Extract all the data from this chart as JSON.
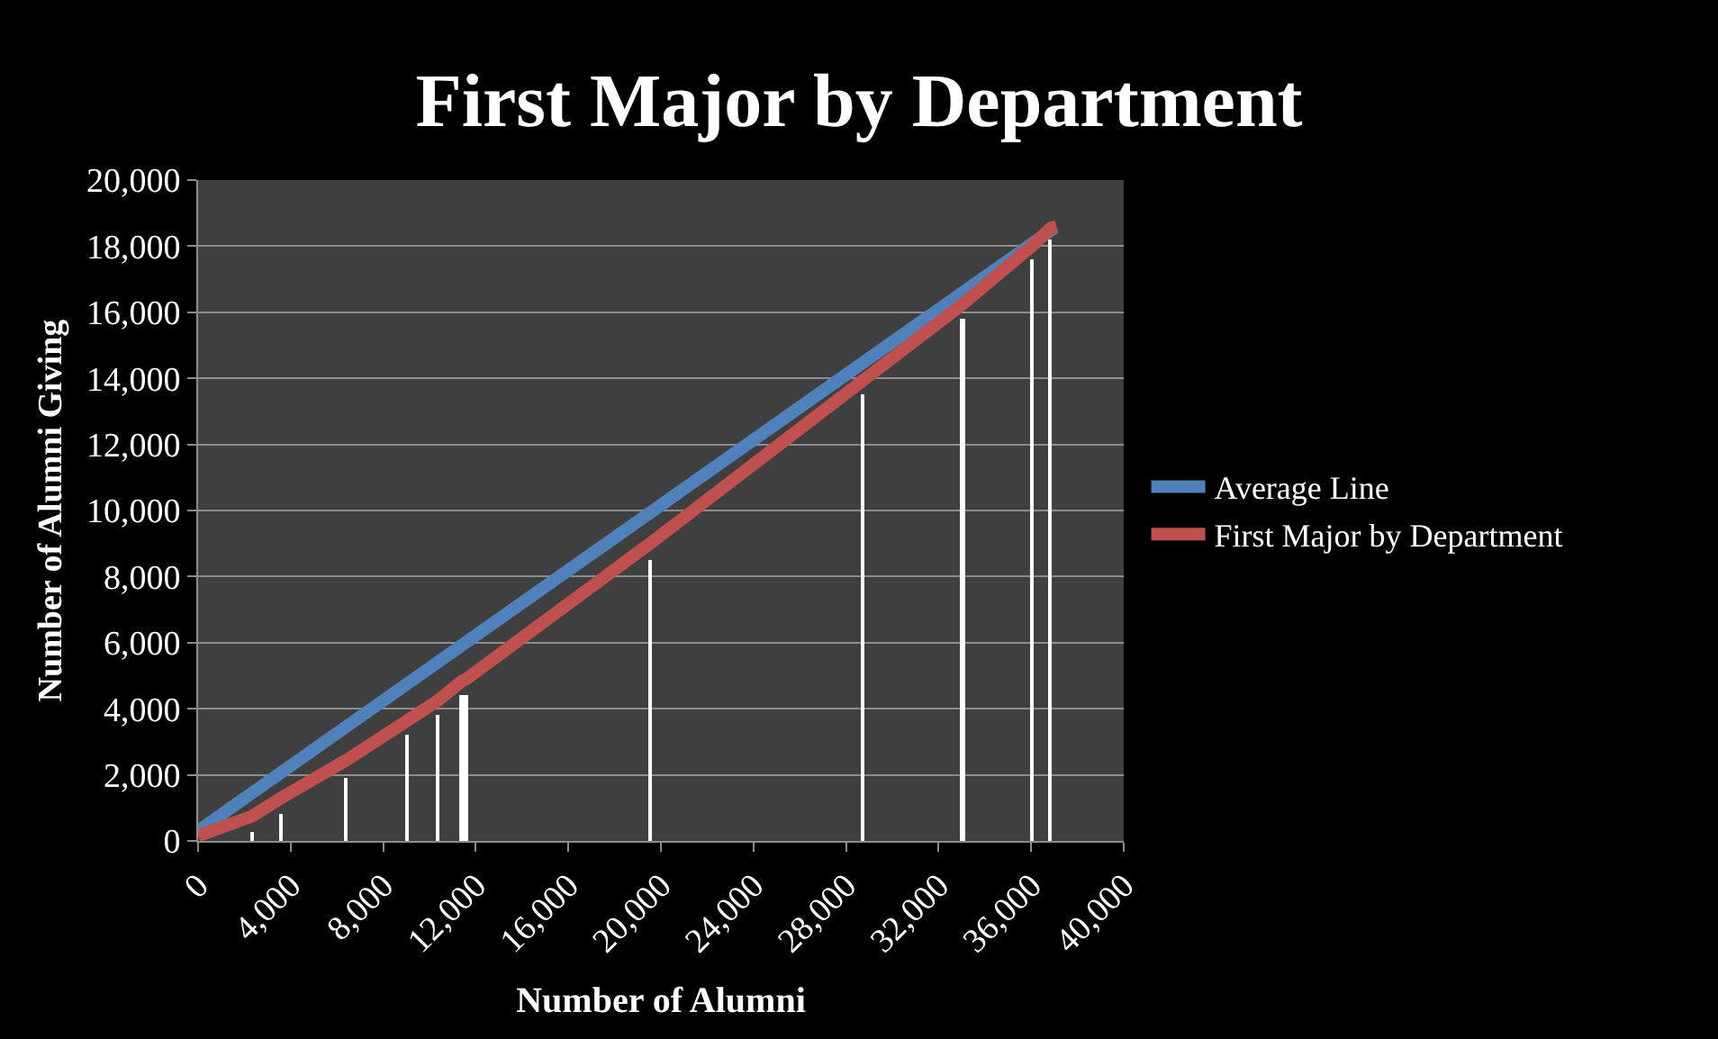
{
  "chart_data": {
    "type": "line",
    "title": "First Major by Department",
    "xlabel": "Number of Alumni",
    "ylabel": "Number of Alumni Giving",
    "series": [
      {
        "type": "bar",
        "color": "#ffffff",
        "x": [
          2336,
          3591,
          6423,
          9051,
          10365,
          11416,
          11591,
          19533,
          28759,
          33051,
          36029,
          36847
        ],
        "values": [
          300,
          800,
          1900,
          3200,
          3800,
          4400,
          4400,
          8500,
          13500,
          15800,
          17600,
          18200
        ]
      },
      {
        "name": "Average Line",
        "color": "#4f81bd",
        "x": [
          0,
          37000
        ],
        "values": [
          300,
          18550
        ]
      },
      {
        "name": "First Major by Department",
        "color": "#c0504d",
        "x": [
          0,
          2336,
          3591,
          6423,
          9051,
          10365,
          11416,
          11591,
          19533,
          28759,
          33051,
          36029,
          36847,
          37100
        ],
        "values": [
          150,
          750,
          1300,
          2450,
          3650,
          4250,
          4850,
          4900,
          9000,
          13950,
          16250,
          18000,
          18550,
          18600
        ]
      }
    ],
    "xlim": [
      0,
      40000
    ],
    "xticks": [
      {
        "value": 0,
        "label": "0"
      },
      {
        "value": 4000,
        "label": "4,000"
      },
      {
        "value": 8000,
        "label": "8,000"
      },
      {
        "value": 12000,
        "label": "12,000"
      },
      {
        "value": 16000,
        "label": "16,000"
      },
      {
        "value": 20000,
        "label": "20,000"
      },
      {
        "value": 24000,
        "label": "24,000"
      },
      {
        "value": 28000,
        "label": "28,000"
      },
      {
        "value": 32000,
        "label": "32,000"
      },
      {
        "value": 36000,
        "label": "36,000"
      },
      {
        "value": 40000,
        "label": "40,000"
      }
    ],
    "ylim": [
      0,
      20000
    ],
    "yticks": [
      {
        "value": 0,
        "label": "0"
      },
      {
        "value": 2000,
        "label": "2,000"
      },
      {
        "value": 4000,
        "label": "4,000"
      },
      {
        "value": 6000,
        "label": "6,000"
      },
      {
        "value": 8000,
        "label": "8,000"
      },
      {
        "value": 10000,
        "label": "10,000"
      },
      {
        "value": 12000,
        "label": "12,000"
      },
      {
        "value": 14000,
        "label": "14,000"
      },
      {
        "value": 16000,
        "label": "16,000"
      },
      {
        "value": 18000,
        "label": "18,000"
      },
      {
        "value": 20000,
        "label": "20,000"
      }
    ],
    "grid": "y",
    "legend": "right"
  }
}
